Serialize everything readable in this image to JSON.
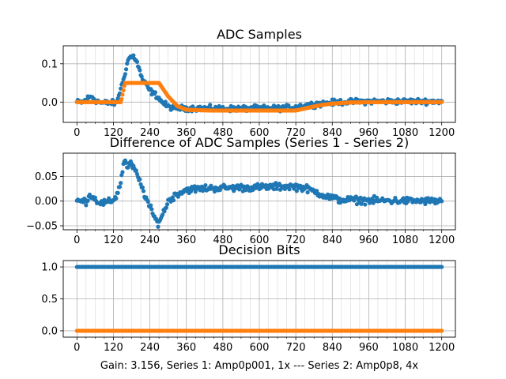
{
  "figure": {
    "footer": "Gain: 3.156, Series 1: Amp0p001, 1x --- Series 2: Amp0p8, 4x"
  },
  "colors": {
    "series1": "#1f77b4",
    "series2": "#ff7f0e",
    "grid": "#b0b0b0",
    "axis": "#000000"
  },
  "chart_data": [
    {
      "type": "scatter",
      "title": "ADC Samples",
      "xlabel": "",
      "ylabel": "",
      "xlim": [
        -45,
        1245
      ],
      "ylim": [
        -0.053,
        0.147
      ],
      "xticks": [
        0,
        120,
        240,
        360,
        480,
        600,
        720,
        840,
        960,
        1080,
        1200
      ],
      "xtick_labels": [
        "0",
        "120",
        "240",
        "360",
        "480",
        "600",
        "720",
        "840",
        "960",
        "1080",
        "1200"
      ],
      "yticks": [
        0.0,
        0.1
      ],
      "ytick_labels": [
        "0.0",
        "0.1"
      ],
      "x_minor_step": 30,
      "grid": true,
      "series": [
        {
          "name": "Series 1",
          "color": "#1f77b4",
          "keypoints": [
            [
              0,
              0
            ],
            [
              20,
              0
            ],
            [
              35,
              0.01
            ],
            [
              50,
              0.015
            ],
            [
              60,
              0.005
            ],
            [
              80,
              -0.002
            ],
            [
              130,
              -0.002
            ],
            [
              150,
              0.05
            ],
            [
              170,
              0.115
            ],
            [
              185,
              0.12
            ],
            [
              195,
              0.11
            ],
            [
              215,
              0.06
            ],
            [
              240,
              0.03
            ],
            [
              265,
              0.015
            ],
            [
              280,
              0.0
            ],
            [
              300,
              -0.012
            ],
            [
              330,
              -0.016
            ],
            [
              400,
              -0.016
            ],
            [
              500,
              -0.017
            ],
            [
              600,
              -0.016
            ],
            [
              680,
              -0.016
            ],
            [
              720,
              -0.012
            ],
            [
              760,
              -0.008
            ],
            [
              800,
              -0.004
            ],
            [
              860,
              0.0
            ],
            [
              960,
              0.002
            ],
            [
              1080,
              0.002
            ],
            [
              1200,
              0.002
            ]
          ],
          "noise": 0.006
        },
        {
          "name": "Series 2",
          "color": "#ff7f0e",
          "keypoints": [
            [
              0,
              0
            ],
            [
              145,
              0
            ],
            [
              158,
              0.05
            ],
            [
              270,
              0.05
            ],
            [
              300,
              0.015
            ],
            [
              330,
              -0.01
            ],
            [
              360,
              -0.02
            ],
            [
              440,
              -0.022
            ],
            [
              600,
              -0.022
            ],
            [
              700,
              -0.022
            ],
            [
              720,
              -0.022
            ],
            [
              760,
              -0.015
            ],
            [
              800,
              -0.008
            ],
            [
              840,
              -0.004
            ],
            [
              900,
              -0.001
            ],
            [
              1000,
              0.0
            ],
            [
              1200,
              0.0
            ]
          ],
          "noise": 0.0
        }
      ]
    },
    {
      "type": "scatter",
      "title": "Difference of ADC Samples (Series 1 - Series 2)",
      "xlabel": "",
      "ylabel": "",
      "xlim": [
        -45,
        1245
      ],
      "ylim": [
        -0.058,
        0.097
      ],
      "xticks": [
        0,
        120,
        240,
        360,
        480,
        600,
        720,
        840,
        960,
        1080,
        1200
      ],
      "xtick_labels": [
        "0",
        "120",
        "240",
        "360",
        "480",
        "600",
        "720",
        "840",
        "960",
        "1080",
        "1200"
      ],
      "yticks": [
        -0.05,
        0.0,
        0.05
      ],
      "ytick_labels": [
        "−0.05",
        "0.00",
        "0.05"
      ],
      "x_minor_step": 30,
      "grid": true,
      "series": [
        {
          "name": "Difference",
          "color": "#1f77b4",
          "keypoints": [
            [
              0,
              0
            ],
            [
              30,
              0
            ],
            [
              40,
              0.01
            ],
            [
              50,
              0.012
            ],
            [
              60,
              0.003
            ],
            [
              80,
              -0.004
            ],
            [
              110,
              -0.002
            ],
            [
              130,
              0.01
            ],
            [
              145,
              0.04
            ],
            [
              155,
              0.085
            ],
            [
              165,
              0.07
            ],
            [
              180,
              0.075
            ],
            [
              200,
              0.05
            ],
            [
              225,
              0.01
            ],
            [
              245,
              -0.02
            ],
            [
              265,
              -0.045
            ],
            [
              280,
              -0.03
            ],
            [
              300,
              0.0
            ],
            [
              330,
              0.015
            ],
            [
              360,
              0.023
            ],
            [
              420,
              0.026
            ],
            [
              500,
              0.027
            ],
            [
              600,
              0.028
            ],
            [
              700,
              0.03
            ],
            [
              740,
              0.028
            ],
            [
              780,
              0.02
            ],
            [
              820,
              0.01
            ],
            [
              860,
              0.003
            ],
            [
              920,
              0.002
            ],
            [
              1000,
              0.001
            ],
            [
              1200,
              0.0
            ]
          ],
          "noise": 0.006
        }
      ]
    },
    {
      "type": "scatter",
      "title": "Decision Bits",
      "xlabel": "Gain: 3.156, Series 1: Amp0p001, 1x --- Series 2: Amp0p8, 4x",
      "ylabel": "",
      "xlim": [
        -45,
        1245
      ],
      "ylim": [
        -0.1,
        1.1
      ],
      "xticks": [
        0,
        120,
        240,
        360,
        480,
        600,
        720,
        840,
        960,
        1080,
        1200
      ],
      "xtick_labels": [
        "0",
        "120",
        "240",
        "360",
        "480",
        "600",
        "720",
        "840",
        "960",
        "1080",
        "1200"
      ],
      "yticks": [
        0.0,
        0.5,
        1.0
      ],
      "ytick_labels": [
        "0.0",
        "0.5",
        "1.0"
      ],
      "x_minor_step": 30,
      "grid": true,
      "series": [
        {
          "name": "Series 1",
          "color": "#1f77b4",
          "keypoints": [
            [
              0,
              1
            ],
            [
              1200,
              1
            ]
          ],
          "noise": 0
        },
        {
          "name": "Series 2",
          "color": "#ff7f0e",
          "keypoints": [
            [
              0,
              0
            ],
            [
              1200,
              0
            ]
          ],
          "noise": 0
        }
      ]
    }
  ]
}
